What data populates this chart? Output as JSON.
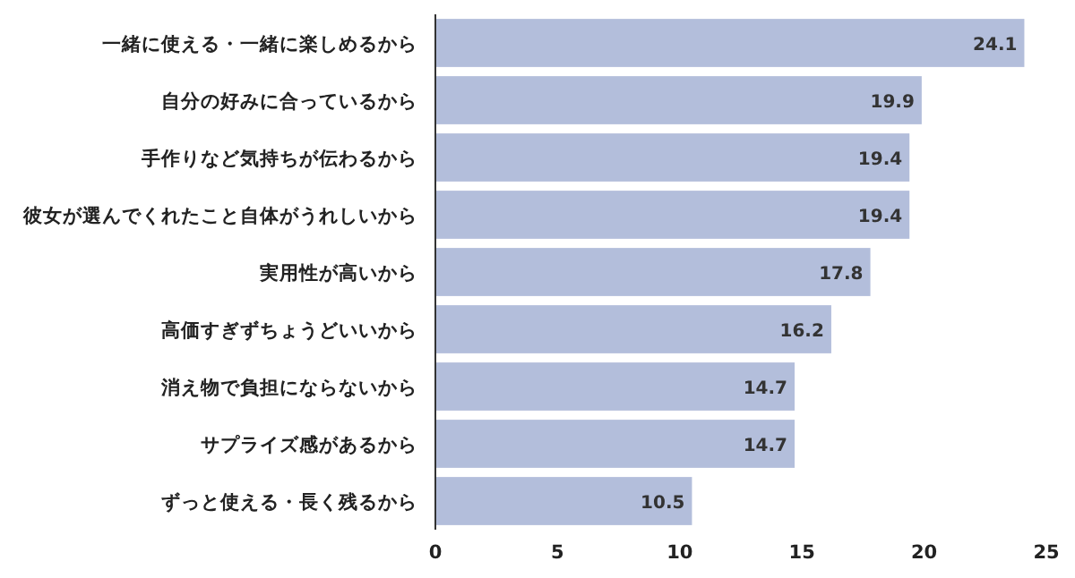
{
  "chart_data": {
    "type": "bar",
    "orientation": "horizontal",
    "categories": [
      "一緒に使える・一緒に楽しめるから",
      "自分の好みに合っているから",
      "手作りなど気持ちが伝わるから",
      "彼女が選んでくれたこと自体がうれしいから",
      "実用性が高いから",
      "高価すぎずちょうどいいから",
      "消え物で負担にならないから",
      "サプライズ感があるから",
      "ずっと使える・長く残るから"
    ],
    "values": [
      24.1,
      19.9,
      19.4,
      19.4,
      17.8,
      16.2,
      14.7,
      14.7,
      10.5
    ],
    "color": "#b3bedb",
    "xlim": [
      0,
      25
    ],
    "xticks": [
      0,
      5,
      10,
      15,
      20,
      25
    ],
    "data_labels": true
  }
}
